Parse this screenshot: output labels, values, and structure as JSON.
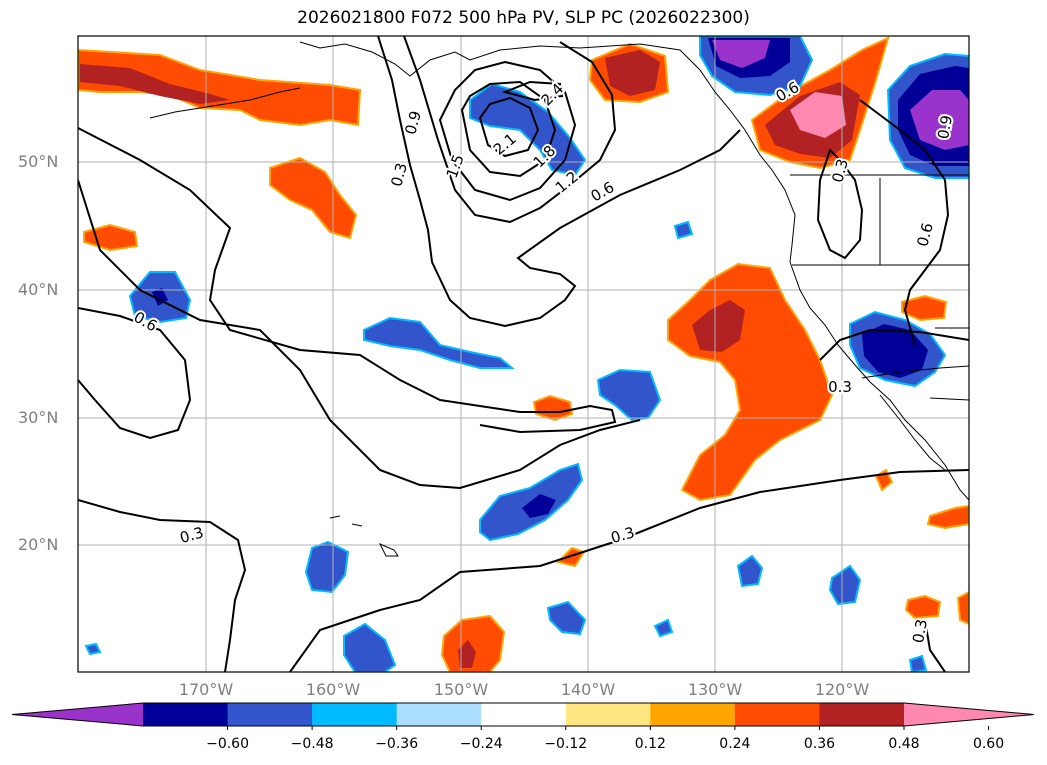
{
  "title": "2026021800 F072 500 hPa PV, SLP PC (2026022300)",
  "lat_labels": [
    "50°N",
    "40°N",
    "30°N",
    "20°N"
  ],
  "lon_labels": [
    "170°W",
    "160°W",
    "150°W",
    "140°W",
    "130°W",
    "120°W"
  ],
  "contour_labels": [
    "0.3",
    "0.9",
    "1.5",
    "2.1",
    "2.4",
    "1.8",
    "1.2",
    "0.6",
    "0.6",
    "0.3",
    "0.3",
    "0.6",
    "0.9",
    "0.3",
    "0.6",
    "0.3",
    "0.3"
  ],
  "colorbar": {
    "ticks": [
      "−0.60",
      "−0.48",
      "−0.36",
      "−0.24",
      "−0.12",
      "0.12",
      "0.24",
      "0.36",
      "0.48",
      "0.60"
    ],
    "colors": [
      "#9933cc",
      "#000099",
      "#3355cc",
      "#00bbff",
      "#aaddff",
      "#ffffff",
      "#ffe680",
      "#ffa500",
      "#ff4c00",
      "#b22222",
      "#ff88b0"
    ]
  }
}
